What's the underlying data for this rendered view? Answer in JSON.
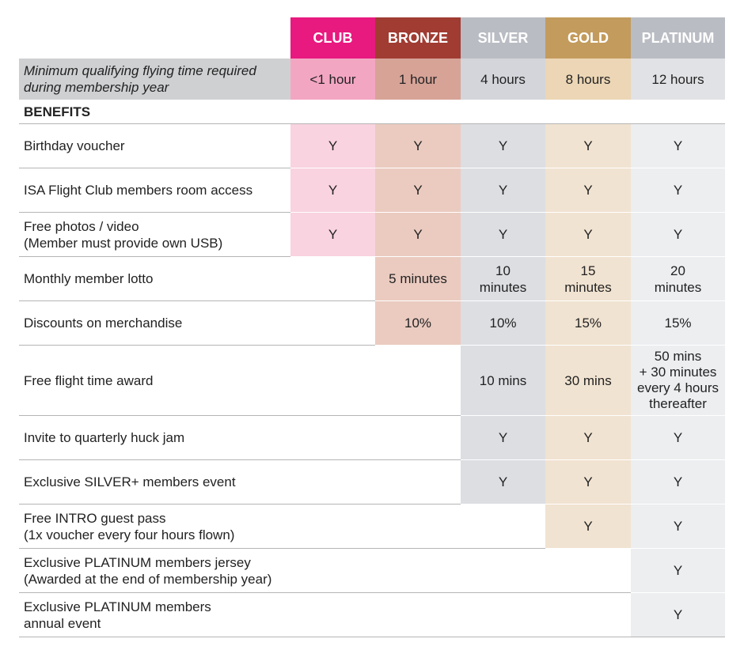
{
  "tiers": [
    {
      "name": "CLUB",
      "header": "#e8197f",
      "min": "#f3a6c2",
      "body": "#f9d3df"
    },
    {
      "name": "BRONZE",
      "header": "#a03c32",
      "min": "#d7a397",
      "body": "#ebcbc0"
    },
    {
      "name": "SILVER",
      "header": "#b9bcc3",
      "min": "#d3d5da",
      "body": "#dcdee2"
    },
    {
      "name": "GOLD",
      "header": "#c39b5c",
      "min": "#ecd6b5",
      "body": "#f1e3d1"
    },
    {
      "name": "PLATINUM",
      "header": "#b9bcc3",
      "min": "#e1e2e5",
      "body": "#eceef0"
    }
  ],
  "minimum": {
    "label": "Minimum qualifying flying time required during membership year",
    "values": [
      "<1 hour",
      "1 hour",
      "4 hours",
      "8 hours",
      "12 hours"
    ]
  },
  "benefits_heading": "BENEFITS",
  "rows": [
    {
      "label": "Birthday voucher",
      "values": [
        "Y",
        "Y",
        "Y",
        "Y",
        "Y"
      ]
    },
    {
      "label": "ISA Flight Club members room access",
      "values": [
        "Y",
        "Y",
        "Y",
        "Y",
        "Y"
      ]
    },
    {
      "label": "Free photos / video\n(Member must provide own USB)",
      "values": [
        "Y",
        "Y",
        "Y",
        "Y",
        "Y"
      ]
    },
    {
      "label": "Monthly member lotto",
      "values": [
        null,
        "5 minutes",
        "10\nminutes",
        "15\nminutes",
        "20\nminutes"
      ]
    },
    {
      "label": "Discounts on merchandise",
      "values": [
        null,
        "10%",
        "10%",
        "15%",
        "15%"
      ]
    },
    {
      "label": "Free flight time award",
      "values": [
        null,
        null,
        "10 mins",
        "30 mins",
        "50 mins\n+ 30 minutes\nevery 4 hours\nthereafter"
      ]
    },
    {
      "label": "Invite to quarterly huck jam",
      "values": [
        null,
        null,
        "Y",
        "Y",
        "Y"
      ]
    },
    {
      "label": "Exclusive SILVER+ members event",
      "values": [
        null,
        null,
        "Y",
        "Y",
        "Y"
      ]
    },
    {
      "label": "Free INTRO guest pass\n(1x voucher every four hours flown)",
      "values": [
        null,
        null,
        null,
        "Y",
        "Y"
      ]
    },
    {
      "label": "Exclusive PLATINUM members jersey\n(Awarded at the end of membership year)",
      "values": [
        null,
        null,
        null,
        null,
        "Y"
      ]
    },
    {
      "label": "Exclusive PLATINUM members\nannual event",
      "values": [
        null,
        null,
        null,
        null,
        "Y"
      ]
    }
  ]
}
